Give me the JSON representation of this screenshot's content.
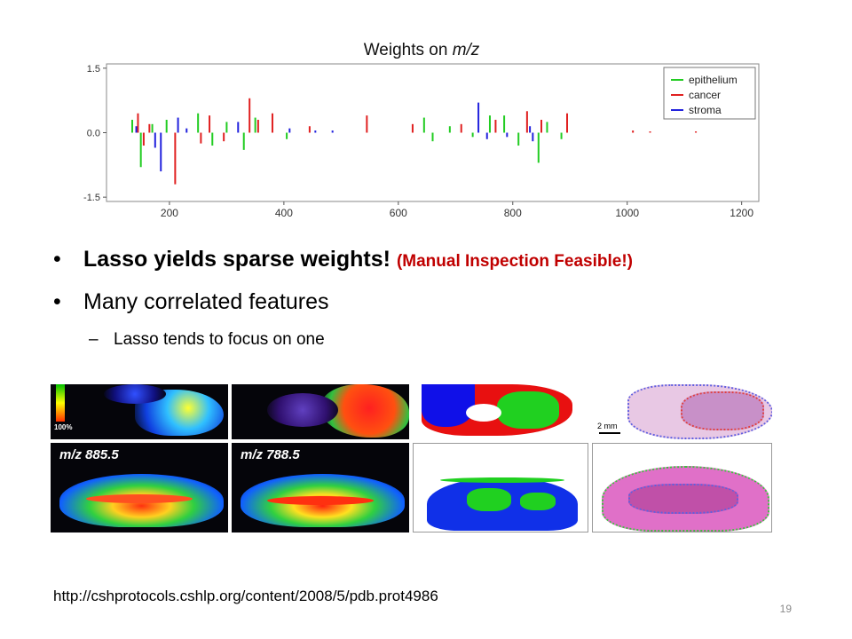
{
  "chart_data": {
    "type": "bar",
    "title_main": "Weights on ",
    "title_italic": "m/z",
    "xlabel": "",
    "ylabel": "",
    "xlim": [
      90,
      1230
    ],
    "ylim": [
      -1.6,
      1.6
    ],
    "xticks": [
      "200",
      "400",
      "600",
      "800",
      "1000",
      "1200"
    ],
    "yticks": [
      "1.5",
      "0.0",
      "-1.5"
    ],
    "legend_position": "top-right",
    "grid": false,
    "series": [
      {
        "name": "epithelium",
        "color": "#22cc22",
        "x": [
          135,
          150,
          170,
          195,
          250,
          275,
          300,
          330,
          350,
          405,
          645,
          660,
          690,
          730,
          760,
          785,
          810,
          845,
          860,
          885
        ],
        "values": [
          0.3,
          -0.8,
          0.2,
          0.3,
          0.45,
          -0.3,
          0.25,
          -0.4,
          0.35,
          -0.15,
          0.35,
          -0.2,
          0.15,
          -0.1,
          0.4,
          0.4,
          -0.3,
          -0.7,
          0.25,
          -0.15
        ]
      },
      {
        "name": "cancer",
        "color": "#e02020",
        "x": [
          145,
          155,
          165,
          210,
          255,
          270,
          295,
          340,
          355,
          380,
          445,
          545,
          625,
          710,
          770,
          825,
          850,
          895,
          1010,
          1040,
          1120
        ],
        "values": [
          0.45,
          -0.3,
          0.2,
          -1.2,
          -0.25,
          0.4,
          -0.2,
          0.8,
          0.3,
          0.45,
          0.15,
          0.4,
          0.2,
          0.2,
          0.3,
          0.5,
          0.3,
          0.45,
          0.05,
          0.03,
          0.03
        ]
      },
      {
        "name": "stroma",
        "color": "#2222dd",
        "x": [
          142,
          175,
          185,
          215,
          230,
          320,
          410,
          455,
          485,
          740,
          755,
          790,
          830,
          835
        ],
        "values": [
          0.15,
          -0.35,
          -0.9,
          0.35,
          0.1,
          0.25,
          0.1,
          0.05,
          0.05,
          0.7,
          -0.15,
          -0.1,
          0.15,
          -0.2
        ]
      }
    ]
  },
  "bullets": {
    "b1_bold": "Lasso yields sparse weights!",
    "b1_red": "(Manual Inspection Feasible!)",
    "b2": "Many correlated features",
    "b3_dash": "–",
    "b3": "Lasso tends to focus on one"
  },
  "images": {
    "pct_label": "100%",
    "label1": "m/z 885.5",
    "label2": "m/z 788.5",
    "scale": "2 mm"
  },
  "footer": {
    "url": "http://cshprotocols.cshlp.org/content/2008/5/pdb.prot4986",
    "page": "19"
  }
}
